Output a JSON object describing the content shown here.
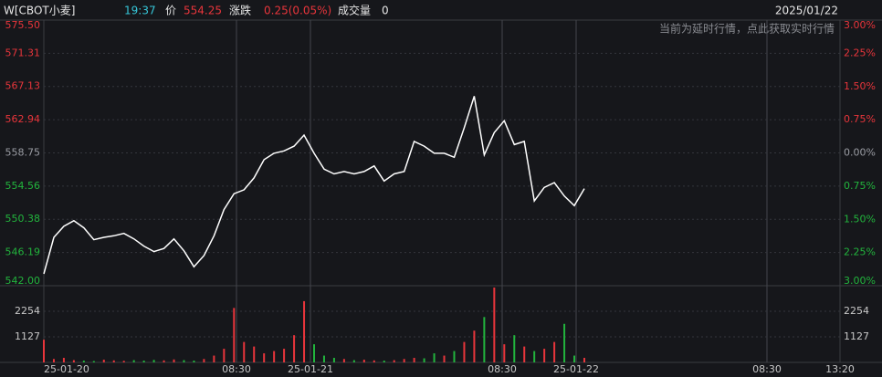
{
  "header": {
    "symbol": "W[CBOT小麦]",
    "time": "19:37",
    "price_label": "价",
    "price": "554.25",
    "change_label": "涨跌",
    "change": "0.25(0.05%)",
    "volume_label": "成交量",
    "volume": "0",
    "date": "2025/01/22",
    "notice": "当前为延时行情，点此获取实时行情"
  },
  "chart_data": [
    {
      "type": "line",
      "color": "#ffffff",
      "values": [
        543.5,
        548.1,
        549.5,
        550.2,
        549.3,
        547.8,
        548.1,
        548.3,
        548.6,
        547.9,
        547.0,
        546.3,
        546.7,
        547.9,
        546.4,
        544.4,
        545.8,
        548.3,
        551.6,
        553.6,
        554.1,
        555.6,
        557.9,
        558.7,
        559.0,
        559.6,
        561.0,
        558.7,
        556.7,
        556.1,
        556.4,
        556.1,
        556.4,
        557.1,
        555.2,
        556.1,
        556.4,
        560.2,
        559.6,
        558.7,
        558.7,
        558.2,
        561.9,
        565.9,
        558.5,
        561.3,
        562.8,
        559.8,
        560.2,
        552.7,
        554.4,
        555.0,
        553.3,
        552.1,
        554.25
      ],
      "ylim": [
        542,
        575.5
      ],
      "yticks": [
        {
          "value": 575.5,
          "label": "575.50"
        },
        571.31,
        567.13,
        562.94,
        558.75,
        554.56,
        550.38,
        546.19,
        {
          "value": 542,
          "label": "542.00"
        }
      ],
      "y2lim": [
        -3,
        3
      ],
      "y2ticks": [
        {
          "value": 3,
          "label": "3.00%"
        },
        {
          "value": 2.25,
          "label": "2.25%"
        },
        {
          "value": 1.5,
          "label": "1.50%"
        },
        {
          "value": 0.75,
          "label": "0.75%"
        },
        {
          "value": 0,
          "label": "0.00%"
        },
        {
          "value": -0.75,
          "label": "0.75%"
        },
        {
          "value": -1.5,
          "label": "1.50%"
        },
        {
          "value": -2.25,
          "label": "2.25%"
        },
        {
          "value": -3,
          "label": "3.00%"
        }
      ],
      "up_color": "#e8353b",
      "down_color": "#22b43d",
      "flat_color": "#9a9ca3",
      "xticks": [
        "25-01-20",
        "08:30",
        "25-01-21",
        "08:30",
        "25-01-22",
        "08:30",
        "13:20"
      ],
      "grid": true
    },
    {
      "type": "bar",
      "up_color": "#e8353b",
      "down_color": "#22b43d",
      "values": [
        1000,
        150,
        200,
        100,
        80,
        60,
        120,
        90,
        70,
        100,
        80,
        110,
        90,
        130,
        100,
        80,
        150,
        300,
        600,
        2400,
        900,
        700,
        400,
        500,
        600,
        1200,
        2700,
        800,
        300,
        200,
        150,
        100,
        120,
        90,
        80,
        100,
        150,
        200,
        180,
        400,
        300,
        500,
        900,
        1400,
        2000,
        3300,
        800,
        1200,
        700,
        500,
        600,
        900,
        1700,
        300,
        200
      ],
      "ylim": [
        0,
        3381
      ],
      "yticks": [
        2254,
        1127
      ]
    }
  ]
}
